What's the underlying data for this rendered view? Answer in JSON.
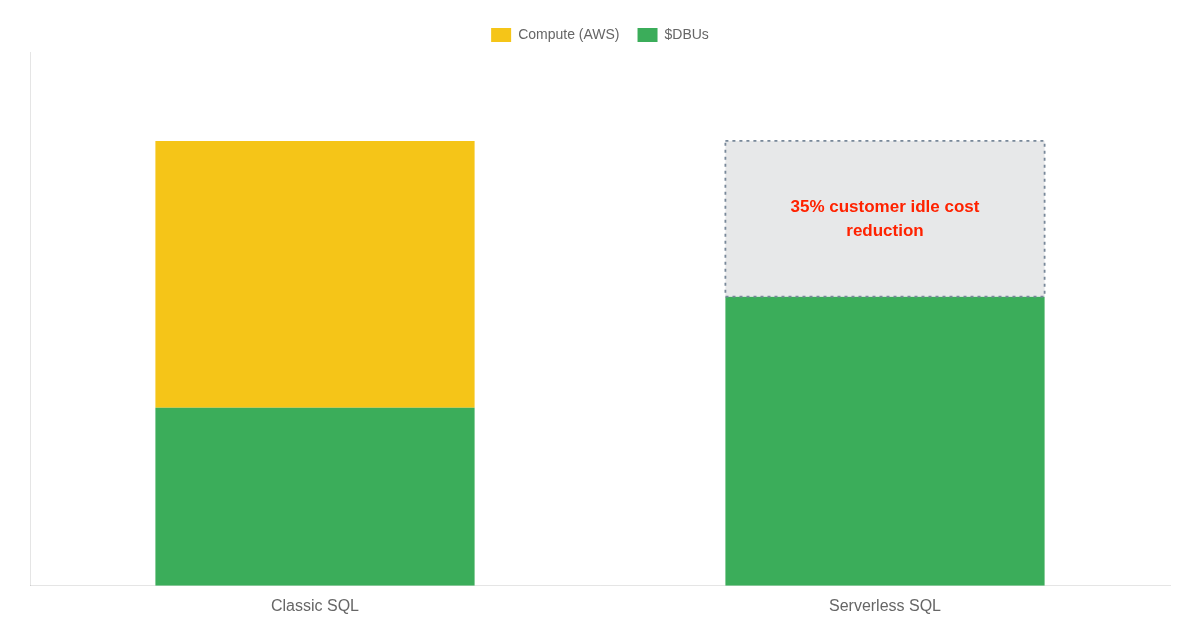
{
  "chart_data": {
    "type": "bar",
    "categories": [
      "Classic SQL",
      "Serverless SQL"
    ],
    "series": [
      {
        "name": "Compute (AWS)",
        "color": "#F5C518",
        "values": [
          60,
          null
        ]
      },
      {
        "name": "$DBUs",
        "color": "#3BAD5A",
        "values": [
          40,
          65
        ]
      }
    ],
    "stacked": true,
    "ylim": [
      0,
      120
    ],
    "grid": false,
    "legend": "top",
    "tick_labels": "x",
    "annotations": [
      {
        "text": "35% customer idle cost\nreduction",
        "category": "Serverless SQL",
        "y_from": 65,
        "y_to": 100,
        "color": "#FF2200"
      }
    ]
  }
}
